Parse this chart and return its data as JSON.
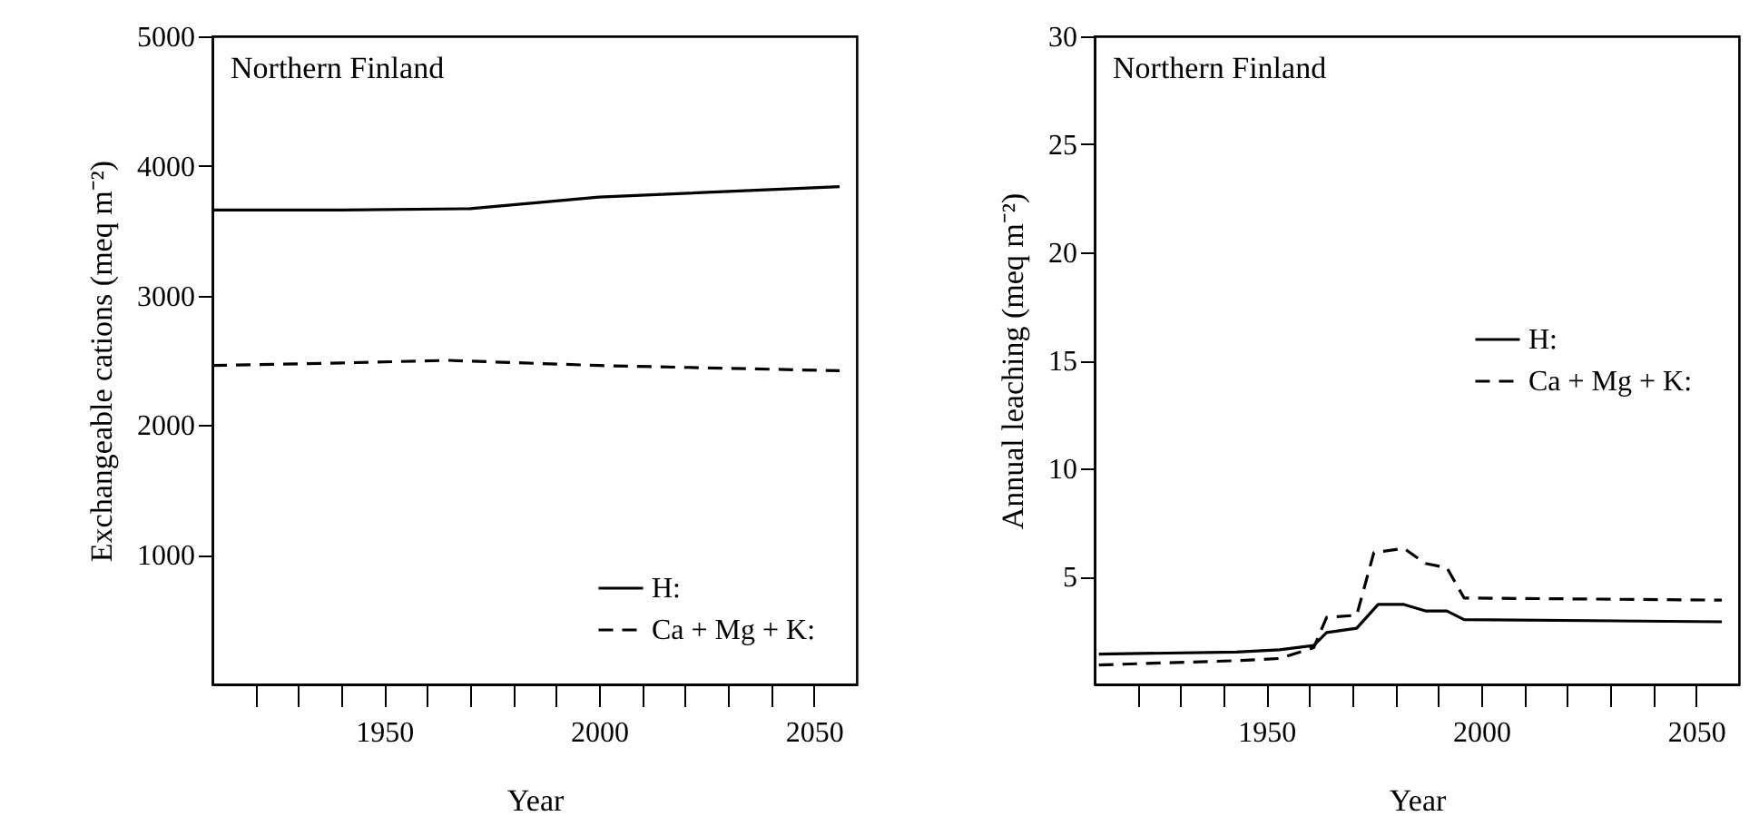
{
  "chart_data": [
    {
      "type": "line",
      "xlabel": "Year",
      "ylabel": "Exchangeable cations (meq m⁻²)",
      "annotations": [
        "Northern Finland"
      ],
      "xlim": [
        1910,
        2060
      ],
      "ylim": [
        0,
        5000
      ],
      "xticks": [
        {
          "value": 1920,
          "label": null
        },
        {
          "value": 1930,
          "label": null
        },
        {
          "value": 1940,
          "label": null
        },
        1950,
        {
          "value": 1960,
          "label": null
        },
        {
          "value": 1970,
          "label": null
        },
        {
          "value": 1980,
          "label": null
        },
        {
          "value": 1990,
          "label": null
        },
        2000,
        {
          "value": 2010,
          "label": null
        },
        {
          "value": 2020,
          "label": null
        },
        {
          "value": 2030,
          "label": null
        },
        {
          "value": 2040,
          "label": null
        },
        2050
      ],
      "yticks": [
        1000,
        2000,
        3000,
        4000,
        5000
      ],
      "grid": false,
      "legend": "bottom right",
      "series": [
        {
          "name": "H:",
          "color": "#000000",
          "line_style": "solid",
          "x": [
            1910,
            1940,
            1970,
            2000,
            2056
          ],
          "values": [
            3660,
            3660,
            3670,
            3760,
            3840
          ]
        },
        {
          "name": "Ca + Mg + K:",
          "color": "#000000",
          "line_style": "dashed",
          "x": [
            1910,
            1940,
            1965,
            2000,
            2056
          ],
          "values": [
            2460,
            2480,
            2500,
            2460,
            2420
          ]
        }
      ]
    },
    {
      "type": "line",
      "xlabel": "Year",
      "ylabel": "Annual leaching (meq m⁻²)",
      "annotations": [
        "Northern Finland"
      ],
      "xlim": [
        1910,
        2060
      ],
      "ylim": [
        0,
        30
      ],
      "xticks": [
        {
          "value": 1920,
          "label": null
        },
        {
          "value": 1930,
          "label": null
        },
        {
          "value": 1940,
          "label": null
        },
        1950,
        {
          "value": 1960,
          "label": null
        },
        {
          "value": 1970,
          "label": null
        },
        {
          "value": 1980,
          "label": null
        },
        {
          "value": 1990,
          "label": null
        },
        2000,
        {
          "value": 2010,
          "label": null
        },
        {
          "value": 2020,
          "label": null
        },
        {
          "value": 2030,
          "label": null
        },
        {
          "value": 2040,
          "label": null
        },
        2050
      ],
      "yticks": [
        5,
        10,
        15,
        20,
        25,
        30
      ],
      "grid": false,
      "legend": "right",
      "series": [
        {
          "name": "H:",
          "color": "#000000",
          "line_style": "solid",
          "x": [
            1911,
            1943,
            1953,
            1961,
            1964,
            1971,
            1976,
            1982,
            1987,
            1992,
            1996,
            2056
          ],
          "values": [
            1.4,
            1.5,
            1.6,
            1.8,
            2.4,
            2.6,
            3.7,
            3.7,
            3.4,
            3.4,
            3.0,
            2.9
          ]
        },
        {
          "name": "Ca + Mg + K:",
          "color": "#000000",
          "line_style": "dashed",
          "x": [
            1911,
            1943,
            1953,
            1961,
            1964,
            1971,
            1975,
            1982,
            1987,
            1992,
            1996,
            2056
          ],
          "values": [
            0.9,
            1.1,
            1.2,
            1.7,
            3.1,
            3.2,
            6.1,
            6.3,
            5.6,
            5.4,
            4.0,
            3.9
          ]
        }
      ]
    }
  ]
}
